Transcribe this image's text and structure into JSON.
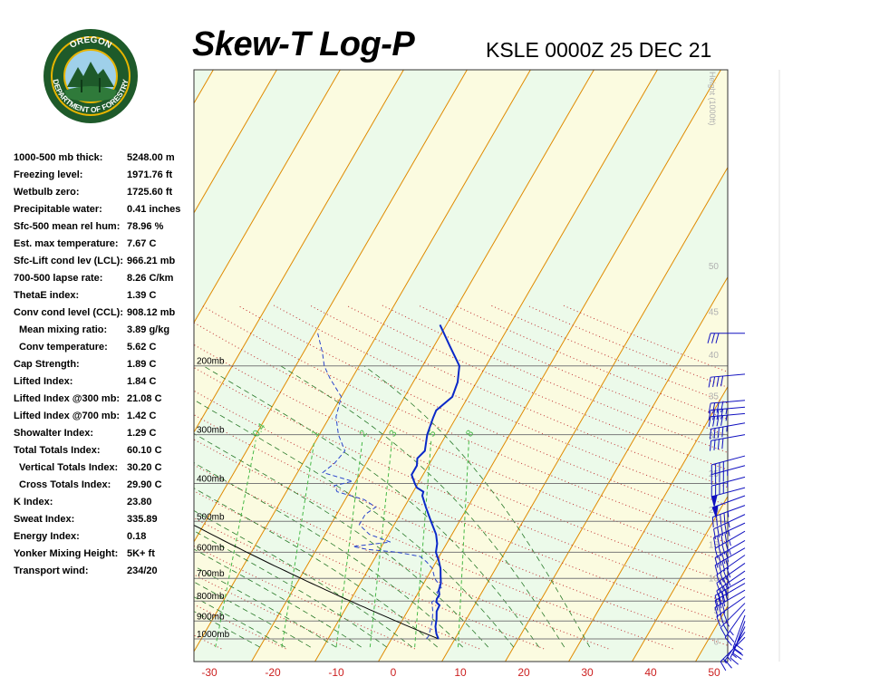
{
  "header": {
    "title": "Skew-T Log-P",
    "station_time": "KSLE 0000Z 25 DEC 21",
    "logo": {
      "top_text": "OREGON",
      "bottom_text": "DEPARTMENT OF FORESTRY",
      "colors": {
        "ring": "#1e5a2a",
        "gold": "#e8b400",
        "sky": "#9fd0ea"
      }
    }
  },
  "indices": [
    {
      "label": "1000-500 mb thick:",
      "value": "5248.00 m",
      "indent": false
    },
    {
      "label": "Freezing level:",
      "value": "1971.76 ft",
      "indent": false
    },
    {
      "label": "Wetbulb zero:",
      "value": "1725.60 ft",
      "indent": false
    },
    {
      "label": "Precipitable water:",
      "value": "0.41 inches",
      "indent": false
    },
    {
      "label": "Sfc-500 mean rel hum:",
      "value": "78.96 %",
      "indent": false
    },
    {
      "label": "Est. max temperature:",
      "value": "7.67 C",
      "indent": false
    },
    {
      "label": "Sfc-Lift cond lev (LCL):",
      "value": "966.21 mb",
      "indent": false
    },
    {
      "label": "700-500 lapse rate:",
      "value": "8.26 C/km",
      "indent": false
    },
    {
      "label": "ThetaE index:",
      "value": "1.39 C",
      "indent": false
    },
    {
      "label": "Conv cond level (CCL):",
      "value": "908.12 mb",
      "indent": false
    },
    {
      "label": "Mean mixing ratio:",
      "value": "3.89 g/kg",
      "indent": true
    },
    {
      "label": "Conv temperature:",
      "value": "5.62 C",
      "indent": true
    },
    {
      "label": "Cap Strength:",
      "value": "1.89 C",
      "indent": false
    },
    {
      "label": "Lifted Index:",
      "value": "1.84 C",
      "indent": false
    },
    {
      "label": "Lifted Index @300 mb:",
      "value": "21.08 C",
      "indent": false
    },
    {
      "label": "Lifted Index @700 mb:",
      "value": "1.42 C",
      "indent": false
    },
    {
      "label": "Showalter Index:",
      "value": "1.29 C",
      "indent": false
    },
    {
      "label": "Total Totals Index:",
      "value": "60.10 C",
      "indent": false
    },
    {
      "label": "Vertical Totals Index:",
      "value": "30.20 C",
      "indent": true
    },
    {
      "label": "Cross Totals Index:",
      "value": "29.90 C",
      "indent": true
    },
    {
      "label": "K Index:",
      "value": "23.80",
      "indent": false
    },
    {
      "label": "Sweat Index:",
      "value": "335.89",
      "indent": false
    },
    {
      "label": "Energy Index:",
      "value": "0.18",
      "indent": false
    },
    {
      "label": "Yonker Mixing Height:",
      "value": "5K+ ft",
      "indent": false
    },
    {
      "label": "Transport wind:",
      "value": "234/20",
      "indent": false
    }
  ],
  "chart_data": {
    "type": "line",
    "subtype": "skew-t log-p",
    "title": "Skew-T Log-P",
    "subtitle": "KSLE 0000Z 25 DEC 21",
    "xlabel": "",
    "ylabel": "",
    "x_ticks": [
      "-30",
      "-20",
      "-10",
      "0",
      "10",
      "20",
      "30",
      "40",
      "50"
    ],
    "x_tick_values": [
      -30,
      -20,
      -10,
      0,
      10,
      20,
      30,
      40,
      50
    ],
    "pressure_labels": [
      "200mb",
      "300mb",
      "400mb",
      "500mb",
      "600mb",
      "700mb",
      "800mb",
      "900mb",
      "1000mb"
    ],
    "pressure_values": [
      200,
      300,
      400,
      500,
      600,
      700,
      800,
      900,
      1000
    ],
    "height_axis_title": "Height (1000ft)",
    "height_ticks": [
      "0",
      "5",
      "10",
      "15",
      "20",
      "25",
      "30",
      "35",
      "40",
      "45",
      "50"
    ],
    "height_tick_values": [
      0,
      5,
      10,
      15,
      20,
      25,
      30,
      35,
      40,
      45,
      50
    ],
    "mixing_ratio_labels": [
      "0.4",
      "1",
      "2",
      "3",
      "5",
      "8"
    ],
    "mixing_ratio_values": [
      0.4,
      1,
      2,
      3,
      5,
      8
    ],
    "temperature_profile": [
      {
        "p": 1000,
        "t": 7.4
      },
      {
        "p": 970,
        "t": 6.6
      },
      {
        "p": 930,
        "t": 5.8
      },
      {
        "p": 890,
        "t": 5.3
      },
      {
        "p": 850,
        "t": 4.6
      },
      {
        "p": 820,
        "t": 4.5
      },
      {
        "p": 805,
        "t": 3.7
      },
      {
        "p": 790,
        "t": 3.5
      },
      {
        "p": 770,
        "t": 3.5
      },
      {
        "p": 750,
        "t": 3.0
      },
      {
        "p": 720,
        "t": 2.7
      },
      {
        "p": 690,
        "t": 2.0
      },
      {
        "p": 660,
        "t": 1.3
      },
      {
        "p": 630,
        "t": 0.3
      },
      {
        "p": 600,
        "t": -0.9
      },
      {
        "p": 570,
        "t": -1.5
      },
      {
        "p": 540,
        "t": -2.5
      },
      {
        "p": 500,
        "t": -4.5
      },
      {
        "p": 460,
        "t": -6.6
      },
      {
        "p": 430,
        "t": -8.2
      },
      {
        "p": 420,
        "t": -8.4
      },
      {
        "p": 410,
        "t": -9.8
      },
      {
        "p": 400,
        "t": -10.5
      },
      {
        "p": 380,
        "t": -11.8
      },
      {
        "p": 360,
        "t": -11.8
      },
      {
        "p": 345,
        "t": -12.4
      },
      {
        "p": 330,
        "t": -11.9
      },
      {
        "p": 300,
        "t": -13.0
      },
      {
        "p": 272,
        "t": -13.6
      },
      {
        "p": 260,
        "t": -13.8
      },
      {
        "p": 240,
        "t": -12.5
      },
      {
        "p": 220,
        "t": -13.0
      },
      {
        "p": 200,
        "t": -14.2
      },
      {
        "p": 178,
        "t": -17.5
      },
      {
        "p": 157,
        "t": -21.0
      }
    ],
    "dewpoint_profile": [
      {
        "p": 1000,
        "t": 5.5
      },
      {
        "p": 985,
        "t": 5.6
      },
      {
        "p": 950,
        "t": 5.3
      },
      {
        "p": 900,
        "t": 4.8
      },
      {
        "p": 850,
        "t": 4.0
      },
      {
        "p": 805,
        "t": 3.0
      },
      {
        "p": 780,
        "t": 3.7
      },
      {
        "p": 760,
        "t": 2.9
      },
      {
        "p": 740,
        "t": 3.2
      },
      {
        "p": 700,
        "t": 1.3
      },
      {
        "p": 660,
        "t": 0.0
      },
      {
        "p": 635,
        "t": -1.5
      },
      {
        "p": 615,
        "t": -3.0
      },
      {
        "p": 600,
        "t": -7.0
      },
      {
        "p": 590,
        "t": -12.0
      },
      {
        "p": 580,
        "t": -14.5
      },
      {
        "p": 565,
        "t": -9.0
      },
      {
        "p": 540,
        "t": -13.0
      },
      {
        "p": 510,
        "t": -15.5
      },
      {
        "p": 480,
        "t": -15.5
      },
      {
        "p": 460,
        "t": -14.5
      },
      {
        "p": 440,
        "t": -17.0
      },
      {
        "p": 420,
        "t": -22.0
      },
      {
        "p": 405,
        "t": -23.0
      },
      {
        "p": 395,
        "t": -20.5
      },
      {
        "p": 375,
        "t": -26.0
      },
      {
        "p": 355,
        "t": -25.0
      },
      {
        "p": 330,
        "t": -24.5
      },
      {
        "p": 300,
        "t": -27.0
      },
      {
        "p": 270,
        "t": -29.0
      },
      {
        "p": 240,
        "t": -30.0
      },
      {
        "p": 215,
        "t": -33.5
      },
      {
        "p": 200,
        "t": -35.5
      },
      {
        "p": 185,
        "t": -37.0
      },
      {
        "p": 165,
        "t": -39.5
      }
    ],
    "wind_barbs": [
      {
        "p": 990,
        "dir": 225,
        "spd": 15
      },
      {
        "p": 960,
        "dir": 215,
        "spd": 15
      },
      {
        "p": 930,
        "dir": 205,
        "spd": 15
      },
      {
        "p": 900,
        "dir": 200,
        "spd": 20
      },
      {
        "p": 870,
        "dir": 200,
        "spd": 20
      },
      {
        "p": 840,
        "dir": 215,
        "spd": 25
      },
      {
        "p": 810,
        "dir": 225,
        "spd": 25
      },
      {
        "p": 780,
        "dir": 235,
        "spd": 30
      },
      {
        "p": 750,
        "dir": 240,
        "spd": 30
      },
      {
        "p": 720,
        "dir": 240,
        "spd": 35
      },
      {
        "p": 700,
        "dir": 240,
        "spd": 35
      },
      {
        "p": 670,
        "dir": 235,
        "spd": 35
      },
      {
        "p": 640,
        "dir": 235,
        "spd": 40
      },
      {
        "p": 610,
        "dir": 235,
        "spd": 40
      },
      {
        "p": 585,
        "dir": 240,
        "spd": 40
      },
      {
        "p": 560,
        "dir": 240,
        "spd": 45
      },
      {
        "p": 530,
        "dir": 240,
        "spd": 45
      },
      {
        "p": 505,
        "dir": 245,
        "spd": 45
      },
      {
        "p": 480,
        "dir": 245,
        "spd": 45
      },
      {
        "p": 455,
        "dir": 250,
        "spd": 45
      },
      {
        "p": 430,
        "dir": 250,
        "spd": 50
      },
      {
        "p": 410,
        "dir": 255,
        "spd": 50
      },
      {
        "p": 385,
        "dir": 255,
        "spd": 45
      },
      {
        "p": 360,
        "dir": 255,
        "spd": 45
      },
      {
        "p": 340,
        "dir": 255,
        "spd": 40
      },
      {
        "p": 300,
        "dir": 260,
        "spd": 40
      },
      {
        "p": 280,
        "dir": 260,
        "spd": 45
      },
      {
        "p": 265,
        "dir": 265,
        "spd": 45
      },
      {
        "p": 255,
        "dir": 265,
        "spd": 45
      },
      {
        "p": 245,
        "dir": 265,
        "spd": 40
      },
      {
        "p": 210,
        "dir": 265,
        "spd": 40
      },
      {
        "p": 165,
        "dir": 270,
        "spd": 30
      }
    ],
    "colors": {
      "temperature": "#0a28c8",
      "dewpoint": "#2a44cc",
      "isotherm": "#e08a00",
      "dry_adiabat": "#c03030",
      "moist_adiabat": "#2a7a2a",
      "mixing_ratio": "#46b846",
      "parcel": "#000000",
      "isobar": "#7a7a7a",
      "band_green": "#ecfaea",
      "band_yellow": "#fbfbe0",
      "barb": "#1010c0",
      "x_tick": "#cc2020"
    }
  }
}
